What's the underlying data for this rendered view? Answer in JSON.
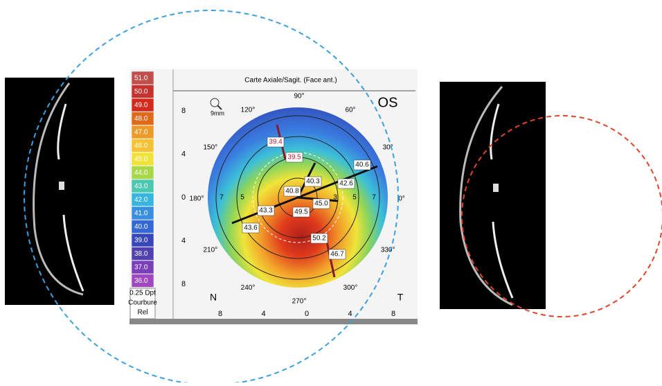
{
  "map": {
    "title": "Carte Axiale/Sagit. (Face ant.)",
    "eye": "OS",
    "zoom": "9mm",
    "scale": [
      {
        "label": "51.0",
        "color": "#c0504d"
      },
      {
        "label": "50.0",
        "color": "#c8322e"
      },
      {
        "label": "49.0",
        "color": "#d42a1c"
      },
      {
        "label": "48.0",
        "color": "#e06a1c"
      },
      {
        "label": "47.0",
        "color": "#ec9a2a"
      },
      {
        "label": "46.0",
        "color": "#f4c232"
      },
      {
        "label": "45.0",
        "color": "#f0e23a"
      },
      {
        "label": "44.0",
        "color": "#a8d84a"
      },
      {
        "label": "43.0",
        "color": "#4cc8b0"
      },
      {
        "label": "42.0",
        "color": "#38b4e0"
      },
      {
        "label": "41.0",
        "color": "#3a8ee0"
      },
      {
        "label": "40.0",
        "color": "#3468d4"
      },
      {
        "label": "39.0",
        "color": "#3848b8"
      },
      {
        "label": "38.0",
        "color": "#5040b0"
      },
      {
        "label": "37.0",
        "color": "#7a40b8"
      },
      {
        "label": "36.0",
        "color": "#a048c0"
      }
    ],
    "step": "0.25 Dpt",
    "mode": "Courbure",
    "ref": "Rel",
    "y_axis": [
      "8",
      "4",
      "0",
      "4",
      "8"
    ],
    "x_axis": [
      "8",
      "4",
      "0",
      "4",
      "8"
    ],
    "angles": [
      "90°",
      "60°",
      "30°",
      "0°",
      "330°",
      "300°",
      "270°",
      "240°",
      "210°",
      "180°",
      "150°",
      "120°"
    ],
    "ring_labels": [
      "7",
      "5",
      "7",
      "5",
      "3"
    ],
    "nasal": "N",
    "temporal": "T",
    "values": [
      "39.4",
      "39.5",
      "40.6",
      "40.3",
      "42.6",
      "40.8",
      "45.0",
      "43.3",
      "49.5",
      "43.6",
      "50.2",
      "46.7"
    ]
  }
}
